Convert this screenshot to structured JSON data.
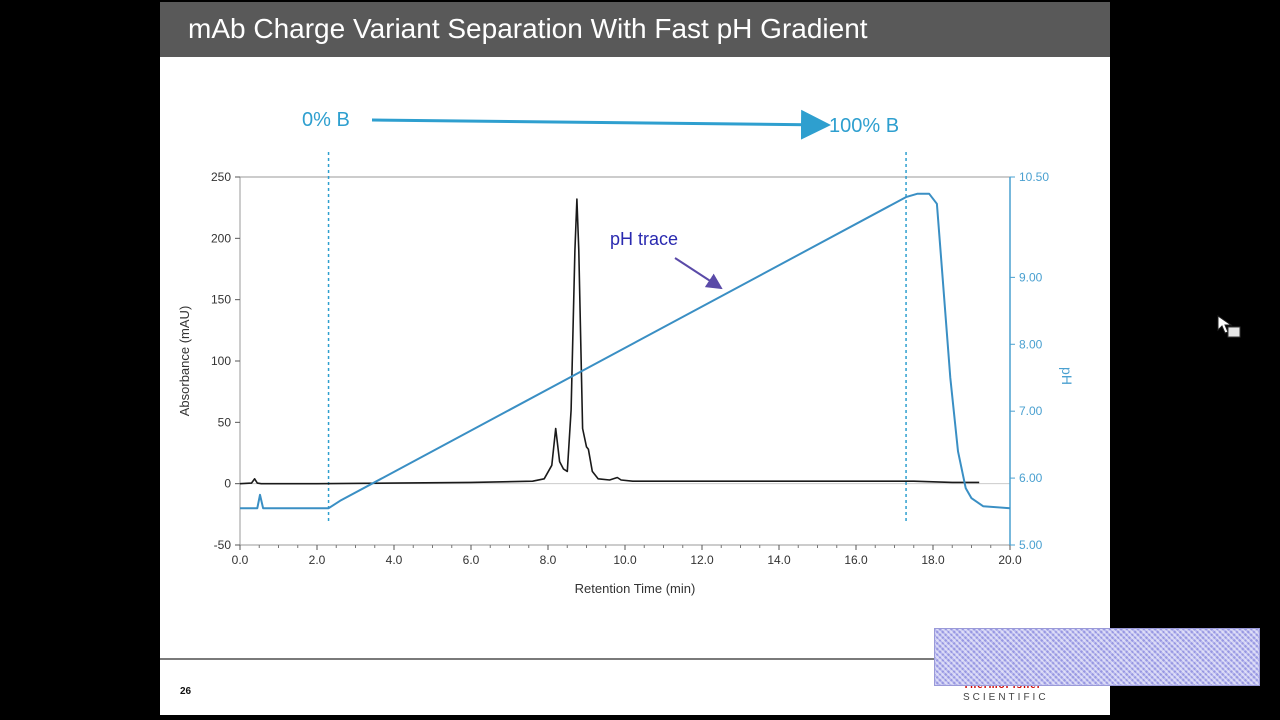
{
  "slide": {
    "title": "mAb Charge Variant Separation With Fast pH Gradient",
    "page_number": "26",
    "logo_text": "SCIENTIFIC",
    "logo_name": "ThermoFisher"
  },
  "colors": {
    "ph_trace": "#3a8fc4",
    "ph_axis": "#4aa0d0",
    "absorbance_trace": "#1a1a1a",
    "gradient_label": "#2e9fcf",
    "annotation_label": "#2a2ab0",
    "title_bar": "#595959"
  },
  "chart_data": {
    "type": "line",
    "xlabel": "Retention Time (min)",
    "ylabel": "Absorbance (mAU)",
    "y2label": "pH",
    "xlim": [
      0,
      20
    ],
    "ylim": [
      -50,
      250
    ],
    "y2lim": [
      5.0,
      10.5
    ],
    "x_ticks": [
      "0.0",
      "2.0",
      "4.0",
      "6.0",
      "8.0",
      "10.0",
      "12.0",
      "14.0",
      "16.0",
      "18.0",
      "20.0"
    ],
    "y_ticks": [
      "-50",
      "0",
      "50",
      "100",
      "150",
      "200",
      "250"
    ],
    "y2_ticks": [
      "5.00",
      "6.00",
      "7.00",
      "8.00",
      "9.00",
      "10.50"
    ],
    "gradient": {
      "start_label": "0% B",
      "end_label": "100% B",
      "start_x": 2.3,
      "end_x": 17.3
    },
    "annotation": "pH trace",
    "series": [
      {
        "axis": "left",
        "x": [
          0,
          0.3,
          0.38,
          0.45,
          0.55,
          2.0,
          4.0,
          6.0,
          7.6,
          7.9,
          8.1,
          8.2,
          8.3,
          8.4,
          8.5,
          8.6,
          8.7,
          8.75,
          8.8,
          8.9,
          9.0,
          9.05,
          9.15,
          9.3,
          9.6,
          9.8,
          9.9,
          10.2,
          12.0,
          14.0,
          16.0,
          17.5,
          18.5,
          19.2
        ],
        "y": [
          0,
          0.5,
          4,
          0.5,
          0,
          0,
          0.5,
          1,
          2,
          4,
          15,
          45,
          18,
          12,
          10,
          60,
          190,
          232,
          190,
          45,
          30,
          28,
          10,
          4,
          3,
          5,
          3,
          2,
          2,
          2,
          2,
          2,
          1,
          1
        ]
      },
      {
        "axis": "right",
        "x": [
          0,
          0.45,
          0.52,
          0.6,
          2.3,
          2.6,
          17.3,
          17.6,
          17.9,
          18.1,
          18.25,
          18.45,
          18.65,
          18.85,
          19.0,
          19.3,
          20.0
        ],
        "y": [
          5.55,
          5.55,
          5.75,
          5.55,
          5.55,
          5.66,
          10.2,
          10.25,
          10.25,
          10.1,
          9.0,
          7.5,
          6.4,
          5.85,
          5.7,
          5.58,
          5.55
        ]
      }
    ]
  }
}
